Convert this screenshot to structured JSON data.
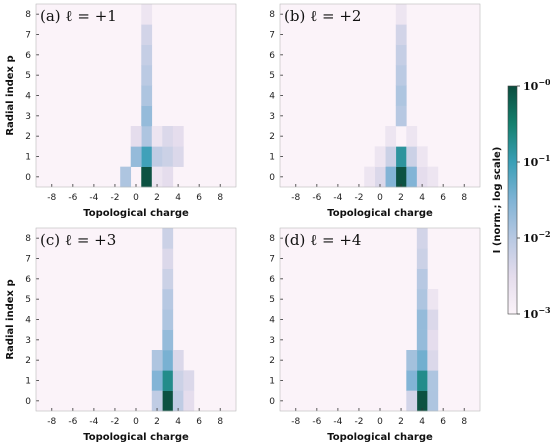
{
  "chart_data": [
    {
      "type": "heatmap",
      "title": "(a) ℓ = +1",
      "xlabel": "Topological charge",
      "ylabel": "Radial index  p",
      "x_ticks": [
        "-8",
        "-6",
        "-4",
        "-2",
        "0",
        "2",
        "4",
        "6",
        "8"
      ],
      "y_ticks": [
        "0",
        "1",
        "2",
        "3",
        "4",
        "5",
        "6",
        "7",
        "8"
      ],
      "x_range": [
        -9,
        9
      ],
      "y_range": [
        0,
        8
      ],
      "color_scale": "log",
      "cells": [
        {
          "x": 1,
          "p": 0,
          "value": 0.9
        },
        {
          "x": 1,
          "p": 1,
          "value": 0.09
        },
        {
          "x": 1,
          "p": 2,
          "value": 0.012
        },
        {
          "x": 1,
          "p": 3,
          "value": 0.02
        },
        {
          "x": 1,
          "p": 4,
          "value": 0.012
        },
        {
          "x": 1,
          "p": 5,
          "value": 0.009
        },
        {
          "x": 1,
          "p": 6,
          "value": 0.007
        },
        {
          "x": 1,
          "p": 7,
          "value": 0.005
        },
        {
          "x": 1,
          "p": 8,
          "value": 0.002
        },
        {
          "x": 0,
          "p": 1,
          "value": 0.02
        },
        {
          "x": 2,
          "p": 1,
          "value": 0.008
        },
        {
          "x": 3,
          "p": 1,
          "value": 0.006
        },
        {
          "x": 4,
          "p": 1,
          "value": 0.004
        },
        {
          "x": 0,
          "p": 2,
          "value": 0.003
        },
        {
          "x": 2,
          "p": 2,
          "value": 0.002
        },
        {
          "x": 3,
          "p": 2,
          "value": 0.004
        },
        {
          "x": 4,
          "p": 2,
          "value": 0.003
        },
        {
          "x": 2,
          "p": 0,
          "value": 0.002
        },
        {
          "x": 3,
          "p": 0,
          "value": 0.003
        },
        {
          "x": -1,
          "p": 0,
          "value": 0.012
        }
      ]
    },
    {
      "type": "heatmap",
      "title": "(b) ℓ = +2",
      "xlabel": "Topological charge",
      "ylabel": "",
      "x_ticks": [
        "-8",
        "-6",
        "-4",
        "-2",
        "0",
        "2",
        "4",
        "6",
        "8"
      ],
      "y_ticks": [
        "0",
        "1",
        "2",
        "3",
        "4",
        "5",
        "6",
        "7",
        "8"
      ],
      "x_range": [
        -9,
        9
      ],
      "y_range": [
        0,
        8
      ],
      "color_scale": "log",
      "cells": [
        {
          "x": 2,
          "p": 0,
          "value": 0.9
        },
        {
          "x": 2,
          "p": 1,
          "value": 0.15
        },
        {
          "x": 2,
          "p": 2,
          "value": 0.001
        },
        {
          "x": 2,
          "p": 3,
          "value": 0.01
        },
        {
          "x": 2,
          "p": 4,
          "value": 0.012
        },
        {
          "x": 2,
          "p": 5,
          "value": 0.009
        },
        {
          "x": 2,
          "p": 6,
          "value": 0.007
        },
        {
          "x": 2,
          "p": 7,
          "value": 0.005
        },
        {
          "x": 2,
          "p": 8,
          "value": 0.002
        },
        {
          "x": 1,
          "p": 1,
          "value": 0.006
        },
        {
          "x": 3,
          "p": 1,
          "value": 0.006
        },
        {
          "x": 1,
          "p": 0,
          "value": 0.03
        },
        {
          "x": 3,
          "p": 0,
          "value": 0.03
        },
        {
          "x": 0,
          "p": 0,
          "value": 0.004
        },
        {
          "x": 4,
          "p": 0,
          "value": 0.003
        },
        {
          "x": -1,
          "p": 0,
          "value": 0.002
        },
        {
          "x": 5,
          "p": 0,
          "value": 0.002
        },
        {
          "x": 1,
          "p": 2,
          "value": 0.002
        },
        {
          "x": 3,
          "p": 2,
          "value": 0.002
        },
        {
          "x": 4,
          "p": 1,
          "value": 0.002
        },
        {
          "x": 0,
          "p": 1,
          "value": 0.002
        }
      ]
    },
    {
      "type": "heatmap",
      "title": "(c) ℓ = +3",
      "xlabel": "Topological charge",
      "ylabel": "Radial index  p",
      "x_ticks": [
        "-8",
        "-6",
        "-4",
        "-2",
        "0",
        "2",
        "4",
        "6",
        "8"
      ],
      "y_ticks": [
        "0",
        "1",
        "2",
        "3",
        "4",
        "5",
        "6",
        "7",
        "8"
      ],
      "x_range": [
        -9,
        9
      ],
      "y_range": [
        0,
        8
      ],
      "color_scale": "log",
      "cells": [
        {
          "x": 3,
          "p": 0,
          "value": 0.9
        },
        {
          "x": 3,
          "p": 1,
          "value": 0.2
        },
        {
          "x": 3,
          "p": 2,
          "value": 0.035
        },
        {
          "x": 3,
          "p": 3,
          "value": 0.02
        },
        {
          "x": 3,
          "p": 4,
          "value": 0.012
        },
        {
          "x": 3,
          "p": 5,
          "value": 0.01
        },
        {
          "x": 3,
          "p": 6,
          "value": 0.006
        },
        {
          "x": 3,
          "p": 7,
          "value": 0.004
        },
        {
          "x": 3,
          "p": 8,
          "value": 0.006
        },
        {
          "x": 2,
          "p": 1,
          "value": 0.03
        },
        {
          "x": 4,
          "p": 1,
          "value": 0.006
        },
        {
          "x": 5,
          "p": 1,
          "value": 0.004
        },
        {
          "x": 2,
          "p": 2,
          "value": 0.012
        },
        {
          "x": 4,
          "p": 2,
          "value": 0.004
        },
        {
          "x": 2,
          "p": 0,
          "value": 0.008
        },
        {
          "x": 4,
          "p": 0,
          "value": 0.008
        },
        {
          "x": 5,
          "p": 0,
          "value": 0.003
        }
      ]
    },
    {
      "type": "heatmap",
      "title": "(d) ℓ = +4",
      "xlabel": "Topological charge",
      "ylabel": "",
      "x_ticks": [
        "-8",
        "-6",
        "-4",
        "-2",
        "0",
        "2",
        "4",
        "6",
        "8"
      ],
      "y_ticks": [
        "0",
        "1",
        "2",
        "3",
        "4",
        "5",
        "6",
        "7",
        "8"
      ],
      "x_range": [
        -9,
        9
      ],
      "y_range": [
        0,
        8
      ],
      "color_scale": "log",
      "cells": [
        {
          "x": 4,
          "p": 0,
          "value": 0.9
        },
        {
          "x": 4,
          "p": 1,
          "value": 0.2
        },
        {
          "x": 4,
          "p": 2,
          "value": 0.04
        },
        {
          "x": 4,
          "p": 3,
          "value": 0.02
        },
        {
          "x": 4,
          "p": 4,
          "value": 0.02
        },
        {
          "x": 4,
          "p": 5,
          "value": 0.012
        },
        {
          "x": 4,
          "p": 6,
          "value": 0.01
        },
        {
          "x": 4,
          "p": 7,
          "value": 0.006
        },
        {
          "x": 4,
          "p": 8,
          "value": 0.005
        },
        {
          "x": 3,
          "p": 1,
          "value": 0.03
        },
        {
          "x": 5,
          "p": 1,
          "value": 0.012
        },
        {
          "x": 3,
          "p": 2,
          "value": 0.015
        },
        {
          "x": 5,
          "p": 2,
          "value": 0.004
        },
        {
          "x": 5,
          "p": 0,
          "value": 0.012
        },
        {
          "x": 3,
          "p": 0,
          "value": 0.005
        },
        {
          "x": 5,
          "p": 3,
          "value": 0.003
        },
        {
          "x": 5,
          "p": 4,
          "value": 0.004
        },
        {
          "x": 5,
          "p": 5,
          "value": 0.002
        }
      ]
    }
  ],
  "colorbar": {
    "label": "I (norm.; log scale)",
    "ticks": [
      {
        "base": "10",
        "exp": "−0",
        "value": 1
      },
      {
        "base": "10",
        "exp": "−1",
        "value": 0.1
      },
      {
        "base": "10",
        "exp": "−2",
        "value": 0.01
      },
      {
        "base": "10",
        "exp": "−3",
        "value": 0.001
      }
    ],
    "range": [
      0.001,
      1
    ],
    "colors": [
      "#fbf3f9",
      "#e4dcec",
      "#b7c8e2",
      "#7fb3d5",
      "#3a9fb6",
      "#14806e",
      "#0b4d3e"
    ]
  }
}
